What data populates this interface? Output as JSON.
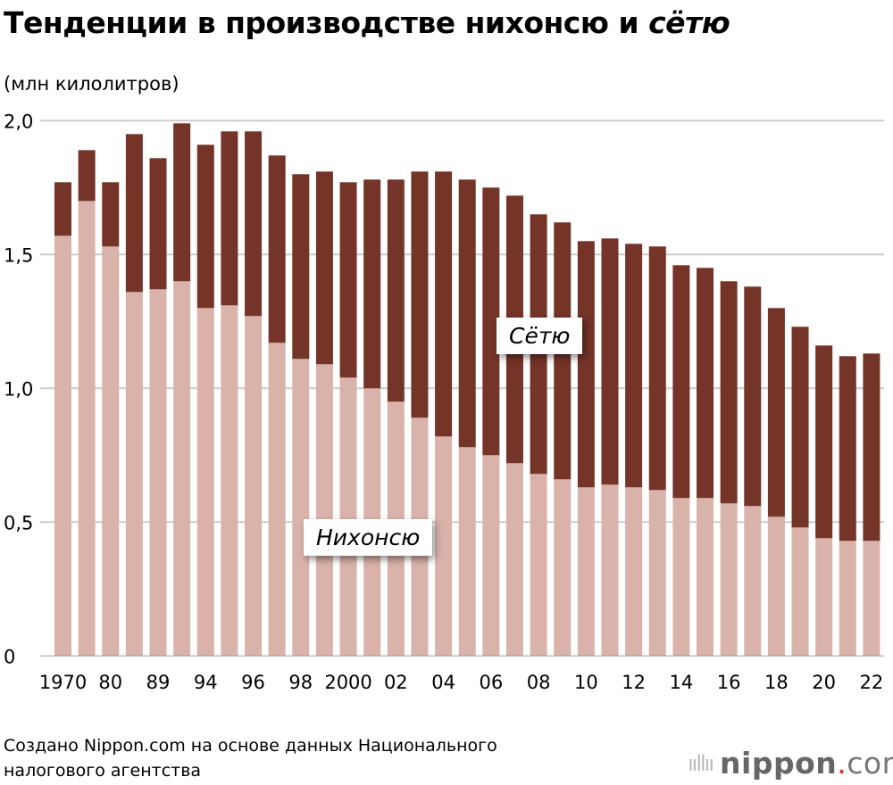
{
  "title_main": "Тенденции в производстве нихонсю и ",
  "title_italic": "сётю",
  "unit": "(млн килолитров)",
  "source": "Создано Nippon.com на основе данных Национального налогового агентства",
  "logo": {
    "word": "nippon",
    "dot": ".",
    "tld": "com"
  },
  "colors": {
    "nihonshu": "#d9b3aa",
    "shochu": "#743427",
    "grid": "#cccccc"
  },
  "chart_data": {
    "type": "bar",
    "stacked": true,
    "title": "Тенденции в производстве нихонсю и сётю",
    "ylabel": "(млн килолитров)",
    "ylim": [
      0,
      2.0
    ],
    "yticks": [
      "0",
      "0,5",
      "1,0",
      "1,5",
      "2,0"
    ],
    "ytick_values": [
      0,
      0.5,
      1.0,
      1.5,
      2.0
    ],
    "grid": true,
    "categories": [
      "1970",
      "",
      "80",
      "",
      "89",
      "",
      "94",
      "",
      "96",
      "",
      "98",
      "",
      "2000",
      "",
      "02",
      "",
      "04",
      "",
      "06",
      "",
      "08",
      "",
      "10",
      "",
      "12",
      "",
      "14",
      "",
      "16",
      "",
      "18",
      "",
      "20",
      "",
      "22"
    ],
    "series": [
      {
        "name": "Нихонсю",
        "values": [
          1.57,
          1.7,
          1.53,
          1.36,
          1.37,
          1.4,
          1.3,
          1.31,
          1.27,
          1.17,
          1.11,
          1.09,
          1.04,
          1.0,
          0.95,
          0.89,
          0.82,
          0.78,
          0.75,
          0.72,
          0.68,
          0.66,
          0.63,
          0.64,
          0.63,
          0.62,
          0.59,
          0.59,
          0.57,
          0.56,
          0.52,
          0.48,
          0.44,
          0.43,
          0.43
        ]
      },
      {
        "name": "Сётю",
        "values": [
          0.2,
          0.19,
          0.24,
          0.59,
          0.49,
          0.59,
          0.61,
          0.65,
          0.69,
          0.7,
          0.69,
          0.72,
          0.73,
          0.78,
          0.83,
          0.92,
          0.99,
          1.0,
          1.0,
          1.0,
          0.97,
          0.96,
          0.92,
          0.92,
          0.91,
          0.91,
          0.87,
          0.86,
          0.83,
          0.82,
          0.78,
          0.75,
          0.72,
          0.69,
          0.7
        ]
      }
    ]
  }
}
